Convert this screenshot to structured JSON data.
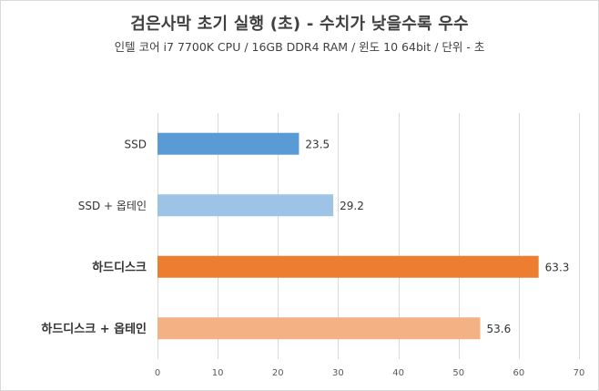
{
  "chart_data": {
    "type": "bar",
    "orientation": "horizontal",
    "title": "검은사막 초기 실행 (초) - 수치가 낮을수록 우수",
    "subtitle": "인텔 코어 i7 7700K CPU / 16GB DDR4 RAM / 윈도 10 64bit / 단위 - 초",
    "categories": [
      "SSD",
      "SSD + 옵테인",
      "하드디스크",
      "하드디스크 + 옵테인"
    ],
    "values": [
      23.5,
      29.2,
      63.3,
      53.6
    ],
    "value_labels": [
      "23.5",
      "29.2",
      "63.3",
      "53.6"
    ],
    "bar_colors": [
      "#5B9BD5",
      "#9DC3E6",
      "#ED7D31",
      "#F4B183"
    ],
    "category_bold": [
      false,
      false,
      true,
      true
    ],
    "xlim": [
      0,
      70
    ],
    "x_ticks": [
      0,
      10,
      20,
      30,
      40,
      50,
      60,
      70
    ],
    "x_tick_labels": [
      "0",
      "10",
      "20",
      "30",
      "40",
      "50",
      "60",
      "70"
    ],
    "grid": "vertical",
    "legend": "none",
    "xlabel": "",
    "ylabel": ""
  },
  "colors": {
    "gridline": "#d9d9d9",
    "text": "#404040"
  }
}
